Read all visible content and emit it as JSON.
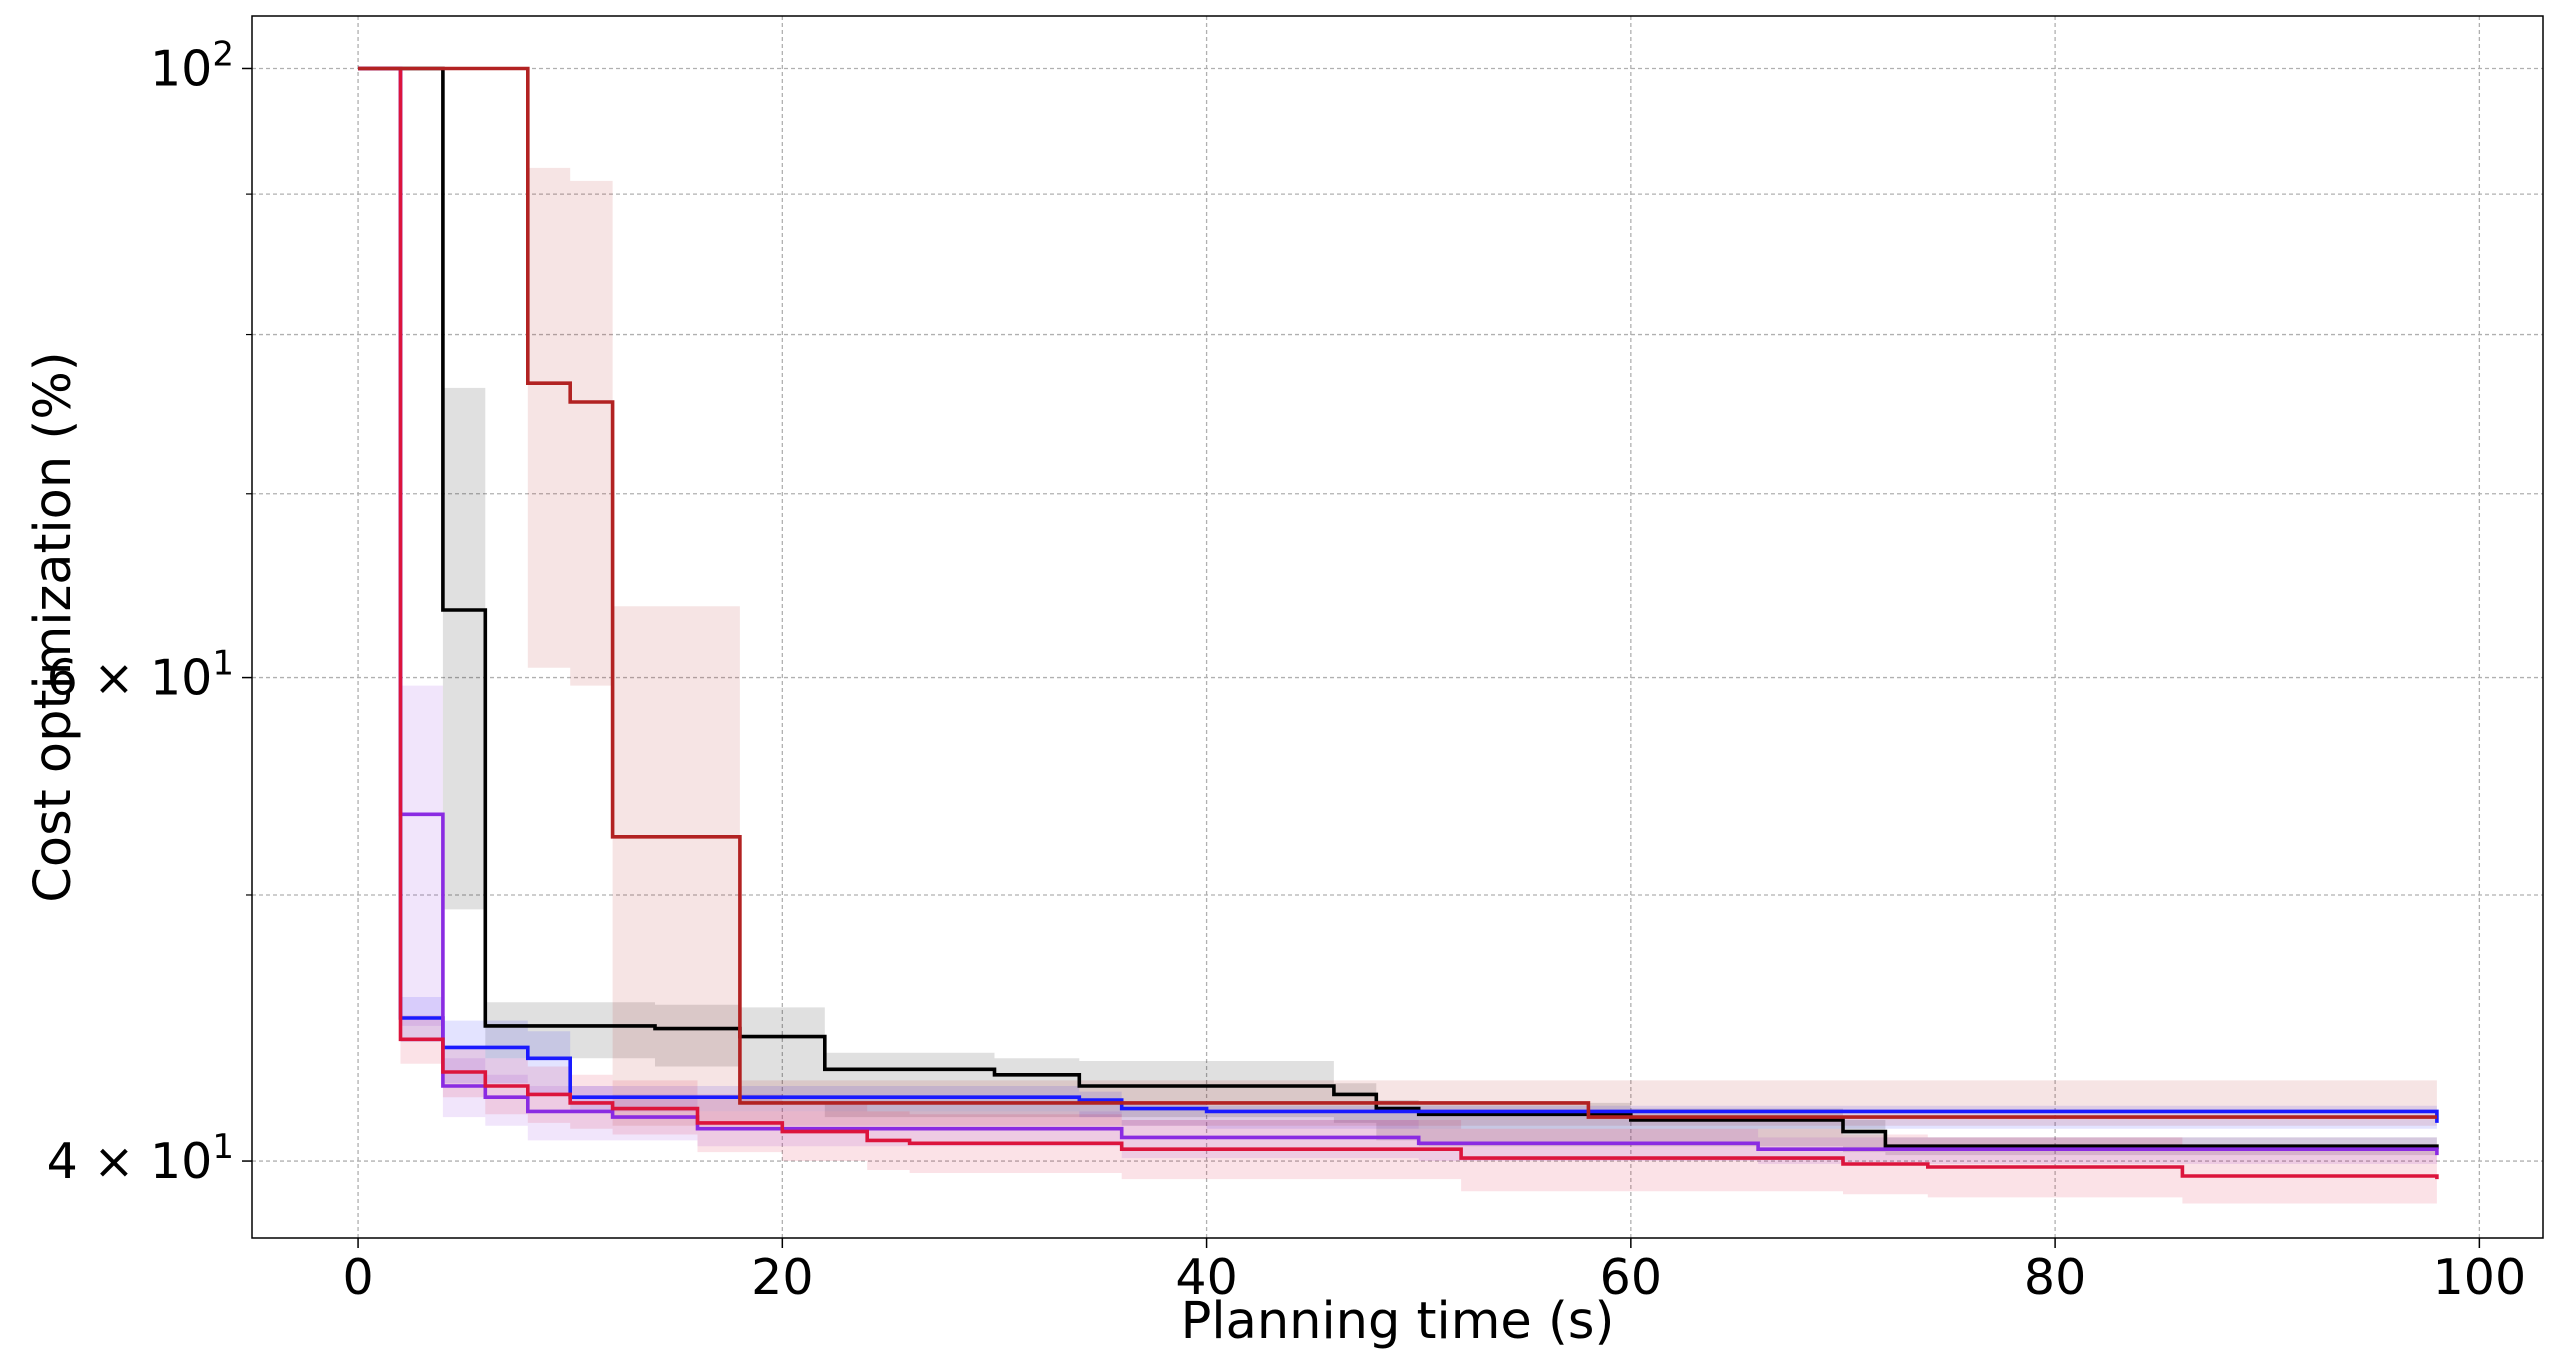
{
  "chart_data": {
    "type": "line",
    "step": "post",
    "xlabel": "Planning time (s)",
    "ylabel": "Cost optimization (%)",
    "xlim": [
      -5,
      103
    ],
    "ylim": [
      37.5,
      104.5
    ],
    "yscale": "log",
    "grid": true,
    "x_ticks": [
      0,
      20,
      40,
      60,
      80,
      100
    ],
    "x_tick_labels": [
      "0",
      "20",
      "40",
      "60",
      "80",
      "100"
    ],
    "y_ticks": [
      {
        "value": 100,
        "base": "10",
        "exp": "2"
      },
      {
        "value": 60,
        "base": "6 × 10",
        "exp": "1"
      },
      {
        "value": 40,
        "base": "4 × 10",
        "exp": "1"
      }
    ],
    "y_minor_ticks": [
      50,
      70,
      80,
      90
    ],
    "series": [
      {
        "color": "#000000",
        "x": [
          0,
          4,
          6,
          14,
          18,
          22,
          30,
          34,
          46,
          48,
          50,
          60,
          70,
          72,
          74,
          98
        ],
        "y": [
          100,
          63.5,
          44.8,
          44.7,
          44.4,
          43.2,
          43.0,
          42.6,
          42.3,
          41.8,
          41.6,
          41.4,
          41.0,
          40.5,
          40.5,
          40.4
        ],
        "lower": [
          100,
          49.4,
          43.6,
          43.3,
          42.0,
          41.5,
          41.5,
          41.5,
          41.3,
          40.7,
          40.5,
          40.5,
          40.3,
          40.2,
          40.2,
          40.2
        ],
        "upper": [
          100,
          76.5,
          45.7,
          45.6,
          45.5,
          43.8,
          43.6,
          43.5,
          42.7,
          42.1,
          42.0,
          41.8,
          41.4,
          40.8,
          40.8,
          40.7
        ]
      },
      {
        "color": "#1a1aff",
        "x": [
          0,
          2,
          4,
          8,
          10,
          34,
          36,
          40,
          98
        ],
        "y": [
          100,
          45.1,
          44.0,
          43.6,
          42.2,
          42.1,
          41.8,
          41.7,
          41.3
        ],
        "lower": [
          100,
          44.2,
          42.7,
          42.3,
          41.7,
          41.5,
          41.2,
          41.1,
          40.8
        ],
        "upper": [
          100,
          45.9,
          45.0,
          44.6,
          42.6,
          42.4,
          42.0,
          41.9,
          41.5
        ]
      },
      {
        "color": "#8a2be2",
        "x": [
          0,
          2,
          4,
          6,
          8,
          12,
          16,
          36,
          50,
          66,
          98
        ],
        "y": [
          100,
          53.5,
          42.6,
          42.2,
          41.7,
          41.5,
          41.1,
          40.8,
          40.6,
          40.4,
          40.2
        ],
        "lower": [
          100,
          44.8,
          41.5,
          41.2,
          40.7,
          40.7,
          40.5,
          40.1,
          40.0,
          39.9,
          39.7
        ],
        "upper": [
          100,
          59.6,
          43.6,
          43.0,
          42.6,
          42.3,
          41.7,
          41.4,
          41.1,
          40.8,
          40.7
        ]
      },
      {
        "color": "#dc143c",
        "x": [
          0,
          2,
          4,
          6,
          8,
          10,
          12,
          16,
          20,
          24,
          26,
          36,
          52,
          70,
          74,
          86,
          98
        ],
        "y": [
          100,
          44.3,
          43.1,
          42.6,
          42.3,
          42.0,
          41.8,
          41.3,
          41.0,
          40.7,
          40.6,
          40.4,
          40.1,
          39.9,
          39.8,
          39.5,
          39.4
        ],
        "lower": [
          100,
          43.4,
          42.2,
          41.6,
          41.3,
          41.1,
          40.9,
          40.3,
          40.0,
          39.7,
          39.6,
          39.4,
          39.0,
          38.9,
          38.8,
          38.6,
          38.6
        ],
        "upper": [
          100,
          45.2,
          44.0,
          43.6,
          43.3,
          43.0,
          42.8,
          42.3,
          42.0,
          41.7,
          41.6,
          41.4,
          41.1,
          40.9,
          40.8,
          40.4,
          40.3
        ]
      },
      {
        "color": "#b22222",
        "x": [
          0,
          8,
          10,
          12,
          18,
          58,
          98
        ],
        "y": [
          100,
          76.8,
          75.6,
          52.5,
          42.0,
          41.5,
          41.5
        ],
        "lower": [
          100,
          60.5,
          59.6,
          41.2,
          41.2,
          41.2,
          41.2
        ],
        "upper": [
          100,
          92.0,
          91.0,
          63.7,
          42.8,
          42.8,
          42.8
        ]
      }
    ]
  }
}
